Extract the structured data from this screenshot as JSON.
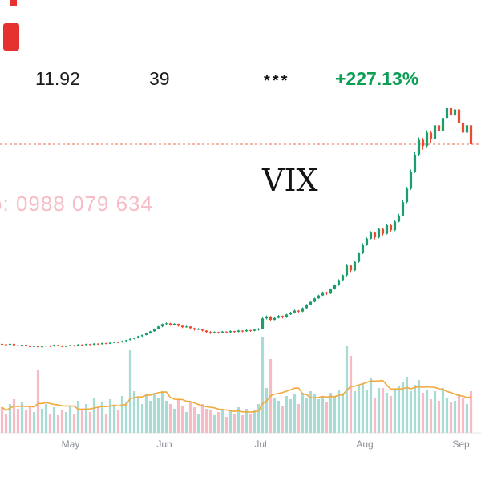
{
  "header": {
    "price": "11.92",
    "secondary_value": "39",
    "masked": "***",
    "change_percent": "+227.13%"
  },
  "symbol": {
    "label": "VIX"
  },
  "watermark": {
    "text": "o: 0988 079 634"
  },
  "colors": {
    "up": "#1e9e6e",
    "down": "#e94c31",
    "vol_up": "#a9dbd5",
    "vol_down": "#f6bcc6",
    "volume_ma": "#f2a93b",
    "reference_dotted": "#ee6a4e",
    "change_green": "#0d9e56",
    "axis_text": "#8a8f98",
    "watermark_pink": "#f6bac4",
    "badge_red": "#e53230"
  },
  "chart_data": {
    "type": "candlestick",
    "title": "VIX daily price with volume",
    "xlabel": "",
    "ylabel": "",
    "x_axis": {
      "labels": [
        "May",
        "Jun",
        "Jul",
        "Aug",
        "Sep"
      ],
      "positions": [
        88,
        205,
        325,
        455,
        575
      ]
    },
    "ylim": [
      3.21,
      13.63
    ],
    "reference_price": 11.92,
    "volume_ma_window": 10,
    "legend": "grid off; reference price shown as dotted horizontal line; volume pane at bottom with moving-average overlay",
    "columns": [
      "open",
      "high",
      "low",
      "close",
      "volume_millions"
    ],
    "candles": [
      [
        3.74,
        3.78,
        3.7,
        3.72,
        1.6
      ],
      [
        3.72,
        3.75,
        3.68,
        3.7,
        1.2
      ],
      [
        3.7,
        3.76,
        3.69,
        3.74,
        1.8
      ],
      [
        3.74,
        3.75,
        3.66,
        3.68,
        2.1
      ],
      [
        3.68,
        3.7,
        3.63,
        3.66,
        1.5
      ],
      [
        3.66,
        3.72,
        3.64,
        3.7,
        1.9
      ],
      [
        3.7,
        3.71,
        3.62,
        3.64,
        1.4
      ],
      [
        3.64,
        3.66,
        3.58,
        3.61,
        1.7
      ],
      [
        3.61,
        3.67,
        3.6,
        3.65,
        1.3
      ],
      [
        3.65,
        3.66,
        3.56,
        3.6,
        3.9
      ],
      [
        3.6,
        3.65,
        3.58,
        3.63,
        1.5
      ],
      [
        3.63,
        3.69,
        3.62,
        3.67,
        1.8
      ],
      [
        3.67,
        3.68,
        3.61,
        3.64,
        1.2
      ],
      [
        3.64,
        3.71,
        3.63,
        3.69,
        1.6
      ],
      [
        3.69,
        3.7,
        3.64,
        3.66,
        1.1
      ],
      [
        3.66,
        3.68,
        3.6,
        3.62,
        1.4
      ],
      [
        3.62,
        3.67,
        3.61,
        3.65,
        1.3
      ],
      [
        3.65,
        3.7,
        3.64,
        3.68,
        1.7
      ],
      [
        3.68,
        3.69,
        3.63,
        3.66,
        1.2
      ],
      [
        3.66,
        3.73,
        3.65,
        3.71,
        2.0
      ],
      [
        3.71,
        3.72,
        3.66,
        3.69,
        1.5
      ],
      [
        3.69,
        3.75,
        3.68,
        3.73,
        1.8
      ],
      [
        3.73,
        3.74,
        3.68,
        3.7,
        1.3
      ],
      [
        3.7,
        3.77,
        3.69,
        3.75,
        2.2
      ],
      [
        3.75,
        3.76,
        3.7,
        3.72,
        1.6
      ],
      [
        3.72,
        3.79,
        3.71,
        3.77,
        1.9
      ],
      [
        3.77,
        3.78,
        3.72,
        3.74,
        1.2
      ],
      [
        3.74,
        3.81,
        3.73,
        3.79,
        2.1
      ],
      [
        3.79,
        3.84,
        3.77,
        3.82,
        1.7
      ],
      [
        3.82,
        3.83,
        3.77,
        3.8,
        1.4
      ],
      [
        3.8,
        3.87,
        3.79,
        3.85,
        2.3
      ],
      [
        3.85,
        3.91,
        3.84,
        3.89,
        1.9
      ],
      [
        3.89,
        3.96,
        3.88,
        3.94,
        5.2
      ],
      [
        3.94,
        4.0,
        3.92,
        3.98,
        2.6
      ],
      [
        3.98,
        4.07,
        3.96,
        4.05,
        2.2
      ],
      [
        4.05,
        4.12,
        4.02,
        4.1,
        1.8
      ],
      [
        4.1,
        4.2,
        4.08,
        4.18,
        2.4
      ],
      [
        4.18,
        4.27,
        4.15,
        4.25,
        2.0
      ],
      [
        4.25,
        4.37,
        4.23,
        4.35,
        2.5
      ],
      [
        4.35,
        4.47,
        4.33,
        4.45,
        2.2
      ],
      [
        4.45,
        4.57,
        4.42,
        4.55,
        2.6
      ],
      [
        4.55,
        4.62,
        4.52,
        4.58,
        2.0
      ],
      [
        4.58,
        4.6,
        4.48,
        4.52,
        1.8
      ],
      [
        4.52,
        4.59,
        4.5,
        4.56,
        1.5
      ],
      [
        4.56,
        4.57,
        4.44,
        4.48,
        2.1
      ],
      [
        4.48,
        4.5,
        4.38,
        4.42,
        1.7
      ],
      [
        4.42,
        4.48,
        4.4,
        4.45,
        1.3
      ],
      [
        4.45,
        4.46,
        4.34,
        4.38,
        1.9
      ],
      [
        4.38,
        4.4,
        4.28,
        4.32,
        1.6
      ],
      [
        4.32,
        4.38,
        4.3,
        4.35,
        1.2
      ],
      [
        4.35,
        4.36,
        4.24,
        4.28,
        1.8
      ],
      [
        4.28,
        4.3,
        4.18,
        4.22,
        1.5
      ],
      [
        4.22,
        4.26,
        4.14,
        4.18,
        1.4
      ],
      [
        4.18,
        4.25,
        4.16,
        4.22,
        1.1
      ],
      [
        4.22,
        4.23,
        4.15,
        4.19,
        1.3
      ],
      [
        4.19,
        4.27,
        4.17,
        4.24,
        1.5
      ],
      [
        4.24,
        4.25,
        4.17,
        4.21,
        1.0
      ],
      [
        4.21,
        4.29,
        4.19,
        4.26,
        1.4
      ],
      [
        4.26,
        4.27,
        4.19,
        4.23,
        1.2
      ],
      [
        4.23,
        4.31,
        4.21,
        4.28,
        1.6
      ],
      [
        4.28,
        4.29,
        4.21,
        4.25,
        1.1
      ],
      [
        4.25,
        4.33,
        4.23,
        4.3,
        1.5
      ],
      [
        4.3,
        4.31,
        4.23,
        4.27,
        1.2
      ],
      [
        4.27,
        4.35,
        4.25,
        4.32,
        1.4
      ],
      [
        4.32,
        4.38,
        4.28,
        4.35,
        1.8
      ],
      [
        4.35,
        4.82,
        4.33,
        4.78,
        6.0
      ],
      [
        4.78,
        4.9,
        4.74,
        4.86,
        2.8
      ],
      [
        4.86,
        4.88,
        4.68,
        4.72,
        4.6
      ],
      [
        4.72,
        4.84,
        4.7,
        4.8,
        2.2
      ],
      [
        4.8,
        4.92,
        4.78,
        4.88,
        2.0
      ],
      [
        4.88,
        4.9,
        4.78,
        4.82,
        1.7
      ],
      [
        4.82,
        4.97,
        4.8,
        4.94,
        2.3
      ],
      [
        4.94,
        5.05,
        4.92,
        5.02,
        2.1
      ],
      [
        5.02,
        5.14,
        5.0,
        5.1,
        2.4
      ],
      [
        5.1,
        5.12,
        5.01,
        5.06,
        1.8
      ],
      [
        5.06,
        5.23,
        5.04,
        5.2,
        2.5
      ],
      [
        5.2,
        5.37,
        5.18,
        5.34,
        2.2
      ],
      [
        5.34,
        5.49,
        5.32,
        5.46,
        2.6
      ],
      [
        5.46,
        5.63,
        5.44,
        5.6,
        2.4
      ],
      [
        5.6,
        5.75,
        5.58,
        5.72,
        2.1
      ],
      [
        5.72,
        5.88,
        5.7,
        5.85,
        2.3
      ],
      [
        5.85,
        5.87,
        5.74,
        5.8,
        1.9
      ],
      [
        5.8,
        6.01,
        5.78,
        5.98,
        2.5
      ],
      [
        5.98,
        6.18,
        5.96,
        6.15,
        2.3
      ],
      [
        6.15,
        6.38,
        6.12,
        6.35,
        2.7
      ],
      [
        6.35,
        6.58,
        6.32,
        6.55,
        2.5
      ],
      [
        6.55,
        7.02,
        6.5,
        6.95,
        5.4
      ],
      [
        6.95,
        6.98,
        6.68,
        6.75,
        4.8
      ],
      [
        6.75,
        7.15,
        6.72,
        7.1,
        2.6
      ],
      [
        7.1,
        7.5,
        7.06,
        7.45,
        2.9
      ],
      [
        7.45,
        7.86,
        7.42,
        7.8,
        3.1
      ],
      [
        7.8,
        8.1,
        7.76,
        8.05,
        2.7
      ],
      [
        8.05,
        8.36,
        8.02,
        8.3,
        3.4
      ],
      [
        8.3,
        8.34,
        8.02,
        8.1,
        2.2
      ],
      [
        8.1,
        8.5,
        8.06,
        8.45,
        2.8
      ],
      [
        8.45,
        8.48,
        8.18,
        8.25,
        2.8
      ],
      [
        8.25,
        8.65,
        8.22,
        8.6,
        2.5
      ],
      [
        8.6,
        8.63,
        8.32,
        8.4,
        2.3
      ],
      [
        8.4,
        8.8,
        8.36,
        8.75,
        2.7
      ],
      [
        8.75,
        9.06,
        8.72,
        9.0,
        2.9
      ],
      [
        9.0,
        9.62,
        8.96,
        9.55,
        3.2
      ],
      [
        9.55,
        10.18,
        9.5,
        10.1,
        3.5
      ],
      [
        10.1,
        10.88,
        10.05,
        10.8,
        2.6
      ],
      [
        10.8,
        11.6,
        10.74,
        11.5,
        3.0
      ],
      [
        11.5,
        12.2,
        11.44,
        12.1,
        3.3
      ],
      [
        12.1,
        12.18,
        11.7,
        11.85,
        2.5
      ],
      [
        11.85,
        12.5,
        11.8,
        12.4,
        2.7
      ],
      [
        12.4,
        12.46,
        11.95,
        12.15,
        2.1
      ],
      [
        12.15,
        12.8,
        12.1,
        12.7,
        2.6
      ],
      [
        12.7,
        12.76,
        12.05,
        12.45,
        2.0
      ],
      [
        12.45,
        13.1,
        12.4,
        13.0,
        2.8
      ],
      [
        13.0,
        13.52,
        12.95,
        13.4,
        2.2
      ],
      [
        13.4,
        13.46,
        12.9,
        13.1,
        1.9
      ],
      [
        13.1,
        13.48,
        13.02,
        13.35,
        2.0
      ],
      [
        13.35,
        13.4,
        12.65,
        12.8,
        2.4
      ],
      [
        12.8,
        12.88,
        12.2,
        12.4,
        2.2
      ],
      [
        12.4,
        12.85,
        12.3,
        12.7,
        1.8
      ],
      [
        12.7,
        12.78,
        11.8,
        11.92,
        2.6
      ]
    ]
  }
}
